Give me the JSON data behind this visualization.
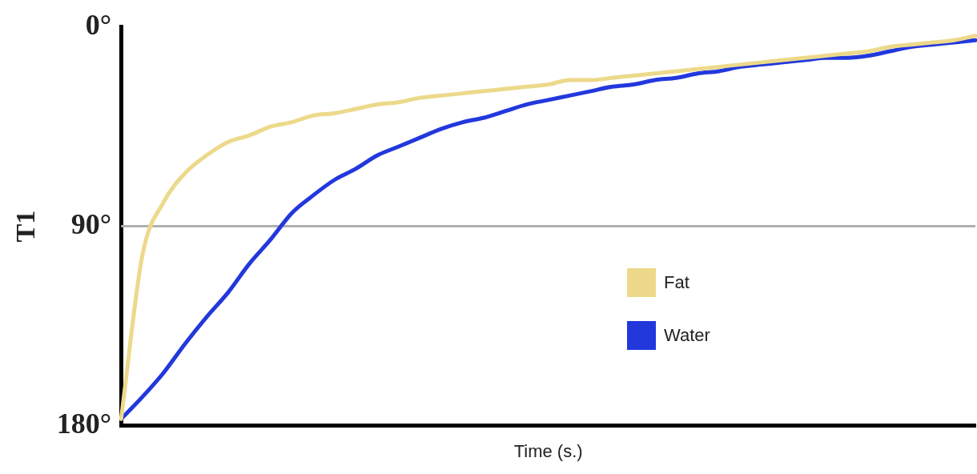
{
  "chart_data": {
    "type": "line",
    "xlabel": "Time (s.)",
    "ylabel": "T1",
    "categories": [
      null,
      null,
      null,
      null,
      null,
      null,
      null,
      null,
      null,
      null,
      null,
      null,
      null,
      null,
      null,
      null,
      null,
      null,
      null,
      null,
      null,
      null,
      null,
      null,
      null,
      null,
      null,
      null,
      null,
      null,
      null,
      null,
      null,
      null,
      null,
      null,
      null,
      null,
      null,
      null,
      null
    ],
    "series": [
      {
        "name": "Fat",
        "color": "#ecd98a",
        "values": [
          177,
          103,
          79,
          66,
          58,
          52,
          49,
          45,
          43,
          40,
          39,
          37,
          35,
          34,
          32,
          31,
          30,
          29,
          28,
          27,
          26,
          24,
          24,
          23,
          22,
          21,
          20,
          19,
          18,
          17,
          16,
          15,
          14,
          13,
          12,
          11,
          9,
          8,
          7,
          6,
          4
        ]
      },
      {
        "name": "Water",
        "color": "#2238dd",
        "values": [
          177,
          167,
          156,
          143,
          131,
          120,
          107,
          96,
          84,
          76,
          69,
          64,
          58,
          54,
          50,
          46,
          43,
          41,
          38,
          35,
          33,
          31,
          29,
          27,
          26,
          24,
          23,
          21,
          20,
          18,
          17,
          16,
          15,
          14,
          14,
          13,
          11,
          9,
          8,
          7,
          6
        ]
      }
    ],
    "ylim": [
      180,
      0
    ],
    "yticks": [
      {
        "value": 0,
        "label": "0°"
      },
      {
        "value": 90,
        "label": "90°"
      },
      {
        "value": 180,
        "label": "180°"
      }
    ],
    "ref_lines": [
      {
        "axis": "y",
        "value": 90,
        "color": "#b0b0b0"
      }
    ],
    "grid": false,
    "legend": "bottom right",
    "tick_labels": "y",
    "marker": "none",
    "line_style": "solid"
  }
}
